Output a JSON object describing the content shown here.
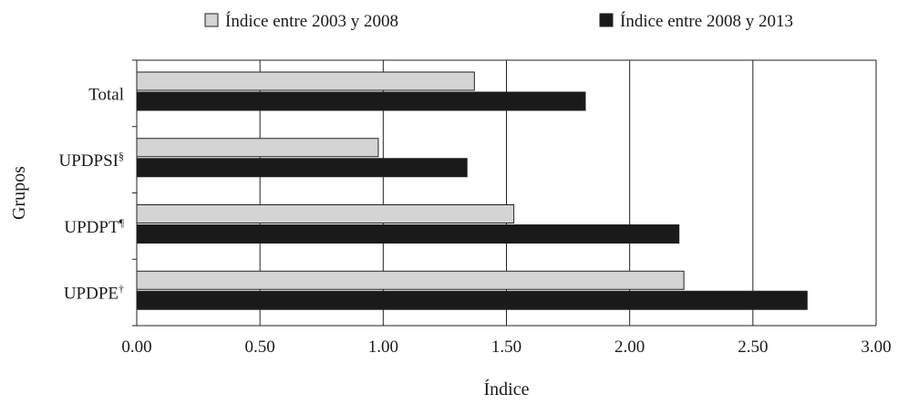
{
  "chart_data": {
    "type": "bar",
    "orientation": "horizontal",
    "categories": [
      {
        "name": "Total",
        "sup": ""
      },
      {
        "name": "UPDPSI",
        "sup": "§"
      },
      {
        "name": "UPDPT",
        "sup": "¶"
      },
      {
        "name": "UPDPE",
        "sup": "†"
      }
    ],
    "series": [
      {
        "name": "Índice entre 2003 y 2008",
        "color": "#d4d4d4",
        "values": [
          1.37,
          0.98,
          1.53,
          2.22
        ]
      },
      {
        "name": "Índice entre 2008 y 2013",
        "color": "#1a1a1a",
        "values": [
          1.82,
          1.34,
          2.2,
          2.72
        ]
      }
    ],
    "xlabel": "Índice",
    "ylabel": "Grupos",
    "xlim": [
      0,
      3
    ],
    "xticks": [
      "0.00",
      "0.50",
      "1.00",
      "1.50",
      "2.00",
      "2.50",
      "3.00"
    ],
    "grid": "vertical",
    "legend_position": "top"
  }
}
